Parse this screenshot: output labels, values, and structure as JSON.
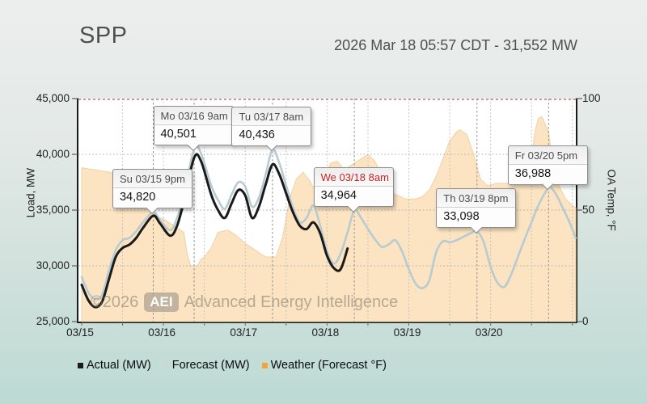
{
  "header": {
    "title": "SPP",
    "timestamp": "2026 Mar 18 05:57 CDT - 31,552 MW"
  },
  "watermark": {
    "copyright": "©2026",
    "badge": "AEI",
    "name": "Advanced Energy Intelligence"
  },
  "legend": [
    {
      "label": "Actual (MW)",
      "color": "#1a1a1a"
    },
    {
      "label": "Forecast (MW)",
      "color": "#ccd6d8"
    },
    {
      "label": "Weather (Forecast °F)",
      "color": "#f2a33c"
    }
  ],
  "chart_data": {
    "type": "line",
    "title": "SPP load actual vs forecast with weather forecast overlay",
    "x_axis": {
      "labels": [
        "03/15",
        "03/16",
        "03/17",
        "03/18",
        "03/19",
        "03/20"
      ],
      "start": "03/15 00:00",
      "hours_span": 145,
      "gridline_every_hours": 12
    },
    "y_left": {
      "label": "Load, MW",
      "min": 25000,
      "max": 45000,
      "ticks": [
        "45,000",
        "40,000",
        "35,000",
        "30,000",
        "25,000"
      ]
    },
    "y_right": {
      "label": "OA Temp, °F",
      "min": 0,
      "max": 100,
      "ticks": [
        "100",
        "50",
        "0"
      ]
    },
    "grid": true,
    "colors": {
      "actual": "#1a1a1a",
      "forecast": "#b7cbd0",
      "weather_fill": "#fce4c2",
      "weather_edge": "#eed2a6",
      "top_dashed": "#c17070",
      "gridline": "#a8a8a8",
      "connector": "#909090",
      "alert_red": "#cc2222"
    },
    "series": [
      {
        "name": "Actual (MW)",
        "axis": "left",
        "style": "line",
        "points": [
          [
            0,
            28300
          ],
          [
            2,
            26900
          ],
          [
            4,
            26300
          ],
          [
            6,
            26800
          ],
          [
            8,
            28800
          ],
          [
            10,
            30800
          ],
          [
            12,
            31600
          ],
          [
            14,
            31900
          ],
          [
            16,
            32500
          ],
          [
            18,
            33400
          ],
          [
            21,
            34500
          ],
          [
            23,
            33800
          ],
          [
            26,
            32700
          ],
          [
            28,
            33600
          ],
          [
            30,
            35800
          ],
          [
            33,
            39700
          ],
          [
            35,
            39400
          ],
          [
            38,
            36400
          ],
          [
            40,
            35000
          ],
          [
            42,
            34300
          ],
          [
            44,
            35600
          ],
          [
            46,
            36800
          ],
          [
            48,
            36300
          ],
          [
            50,
            34300
          ],
          [
            52,
            35300
          ],
          [
            54,
            37300
          ],
          [
            56,
            39100
          ],
          [
            58,
            38200
          ],
          [
            60,
            36500
          ],
          [
            62,
            34800
          ],
          [
            64,
            33600
          ],
          [
            66,
            33300
          ],
          [
            68,
            33900
          ],
          [
            70,
            32900
          ],
          [
            72,
            30900
          ],
          [
            74,
            29800
          ],
          [
            76,
            29700
          ],
          [
            78,
            31552
          ]
        ]
      },
      {
        "name": "Forecast (MW)",
        "axis": "left",
        "style": "line",
        "points": [
          [
            0,
            29000
          ],
          [
            2,
            27600
          ],
          [
            4,
            27000
          ],
          [
            6,
            27400
          ],
          [
            8,
            29600
          ],
          [
            10,
            31400
          ],
          [
            12,
            32300
          ],
          [
            14,
            32500
          ],
          [
            16,
            33100
          ],
          [
            18,
            33900
          ],
          [
            21,
            34820
          ],
          [
            23,
            34100
          ],
          [
            26,
            33200
          ],
          [
            28,
            34300
          ],
          [
            30,
            36400
          ],
          [
            33,
            40501
          ],
          [
            35,
            40100
          ],
          [
            38,
            37200
          ],
          [
            40,
            35900
          ],
          [
            42,
            35100
          ],
          [
            44,
            36400
          ],
          [
            46,
            37500
          ],
          [
            48,
            37100
          ],
          [
            50,
            35300
          ],
          [
            52,
            36100
          ],
          [
            54,
            38200
          ],
          [
            56,
            40436
          ],
          [
            58,
            39200
          ],
          [
            60,
            37200
          ],
          [
            62,
            35200
          ],
          [
            64,
            33900
          ],
          [
            66,
            34300
          ],
          [
            68,
            35400
          ],
          [
            70,
            33600
          ],
          [
            72,
            31300
          ],
          [
            74,
            30200
          ],
          [
            76,
            31100
          ],
          [
            78,
            33000
          ],
          [
            80,
            34964
          ],
          [
            82,
            34300
          ],
          [
            84,
            33300
          ],
          [
            86,
            32400
          ],
          [
            88,
            31700
          ],
          [
            90,
            31900
          ],
          [
            92,
            32300
          ],
          [
            94,
            31300
          ],
          [
            96,
            29700
          ],
          [
            98,
            28400
          ],
          [
            100,
            28000
          ],
          [
            102,
            28700
          ],
          [
            104,
            31200
          ],
          [
            106,
            32200
          ],
          [
            108,
            32100
          ],
          [
            110,
            32300
          ],
          [
            112,
            32600
          ],
          [
            114,
            32900
          ],
          [
            116,
            33098
          ],
          [
            118,
            32100
          ],
          [
            120,
            29900
          ],
          [
            122,
            28500
          ],
          [
            124,
            28100
          ],
          [
            126,
            29200
          ],
          [
            128,
            30800
          ],
          [
            130,
            32400
          ],
          [
            132,
            33900
          ],
          [
            134,
            35400
          ],
          [
            137,
            36988
          ],
          [
            139,
            36500
          ],
          [
            141,
            35300
          ],
          [
            143,
            34000
          ],
          [
            145,
            32500
          ]
        ]
      },
      {
        "name": "Weather (Forecast °F)",
        "axis": "right",
        "style": "area",
        "points": [
          [
            0,
            69
          ],
          [
            4,
            68
          ],
          [
            8,
            67
          ],
          [
            11,
            66
          ],
          [
            13,
            62
          ],
          [
            15,
            53
          ],
          [
            16,
            51
          ],
          [
            20,
            50
          ],
          [
            22,
            47
          ],
          [
            24,
            46
          ],
          [
            28,
            42
          ],
          [
            30,
            40
          ],
          [
            31,
            30
          ],
          [
            32,
            25
          ],
          [
            34,
            25
          ],
          [
            35,
            28
          ],
          [
            36,
            29
          ],
          [
            38,
            33
          ],
          [
            40,
            40
          ],
          [
            43,
            41
          ],
          [
            45,
            39
          ],
          [
            48,
            35
          ],
          [
            52,
            31
          ],
          [
            54,
            29
          ],
          [
            57,
            29
          ],
          [
            59,
            38
          ],
          [
            61,
            55
          ],
          [
            63,
            64
          ],
          [
            65,
            67
          ],
          [
            67,
            63
          ],
          [
            69,
            57
          ],
          [
            71,
            63
          ],
          [
            73,
            71
          ],
          [
            75,
            72
          ],
          [
            77,
            68
          ],
          [
            79,
            70
          ],
          [
            82,
            73
          ],
          [
            84,
            75
          ],
          [
            86,
            72
          ],
          [
            88,
            66
          ],
          [
            90,
            60
          ],
          [
            92,
            57
          ],
          [
            95,
            55
          ],
          [
            98,
            55
          ],
          [
            100,
            56
          ],
          [
            102,
            59
          ],
          [
            104,
            65
          ],
          [
            106,
            73
          ],
          [
            108,
            81
          ],
          [
            110,
            85
          ],
          [
            111,
            86
          ],
          [
            113,
            84
          ],
          [
            115,
            75
          ],
          [
            117,
            64
          ],
          [
            119,
            61
          ],
          [
            122,
            62
          ],
          [
            126,
            62
          ],
          [
            128,
            63
          ],
          [
            130,
            66
          ],
          [
            132,
            72
          ],
          [
            133,
            85
          ],
          [
            134,
            91
          ],
          [
            135,
            92
          ],
          [
            137,
            85
          ],
          [
            138,
            74
          ],
          [
            139,
            67
          ],
          [
            140,
            61
          ],
          [
            142,
            55
          ],
          [
            144,
            52
          ],
          [
            145,
            51
          ]
        ]
      }
    ],
    "annotations": [
      {
        "title": "Su 03/15 9pm",
        "value": "34,820",
        "hour": 21,
        "mw": 34820,
        "red": false
      },
      {
        "title": "Mo 03/16 9am",
        "value": "40,501",
        "hour": 33,
        "mw": 40501,
        "red": false
      },
      {
        "title": "Tu 03/17 8am",
        "value": "40,436",
        "hour": 56,
        "mw": 40436,
        "red": false
      },
      {
        "title": "We 03/18 8am",
        "value": "34,964",
        "hour": 80,
        "mw": 34964,
        "red": true
      },
      {
        "title": "Th 03/19 8pm",
        "value": "33,098",
        "hour": 116,
        "mw": 33098,
        "red": false
      },
      {
        "title": "Fr 03/20 5pm",
        "value": "36,988",
        "hour": 137,
        "mw": 36988,
        "red": false
      }
    ]
  }
}
